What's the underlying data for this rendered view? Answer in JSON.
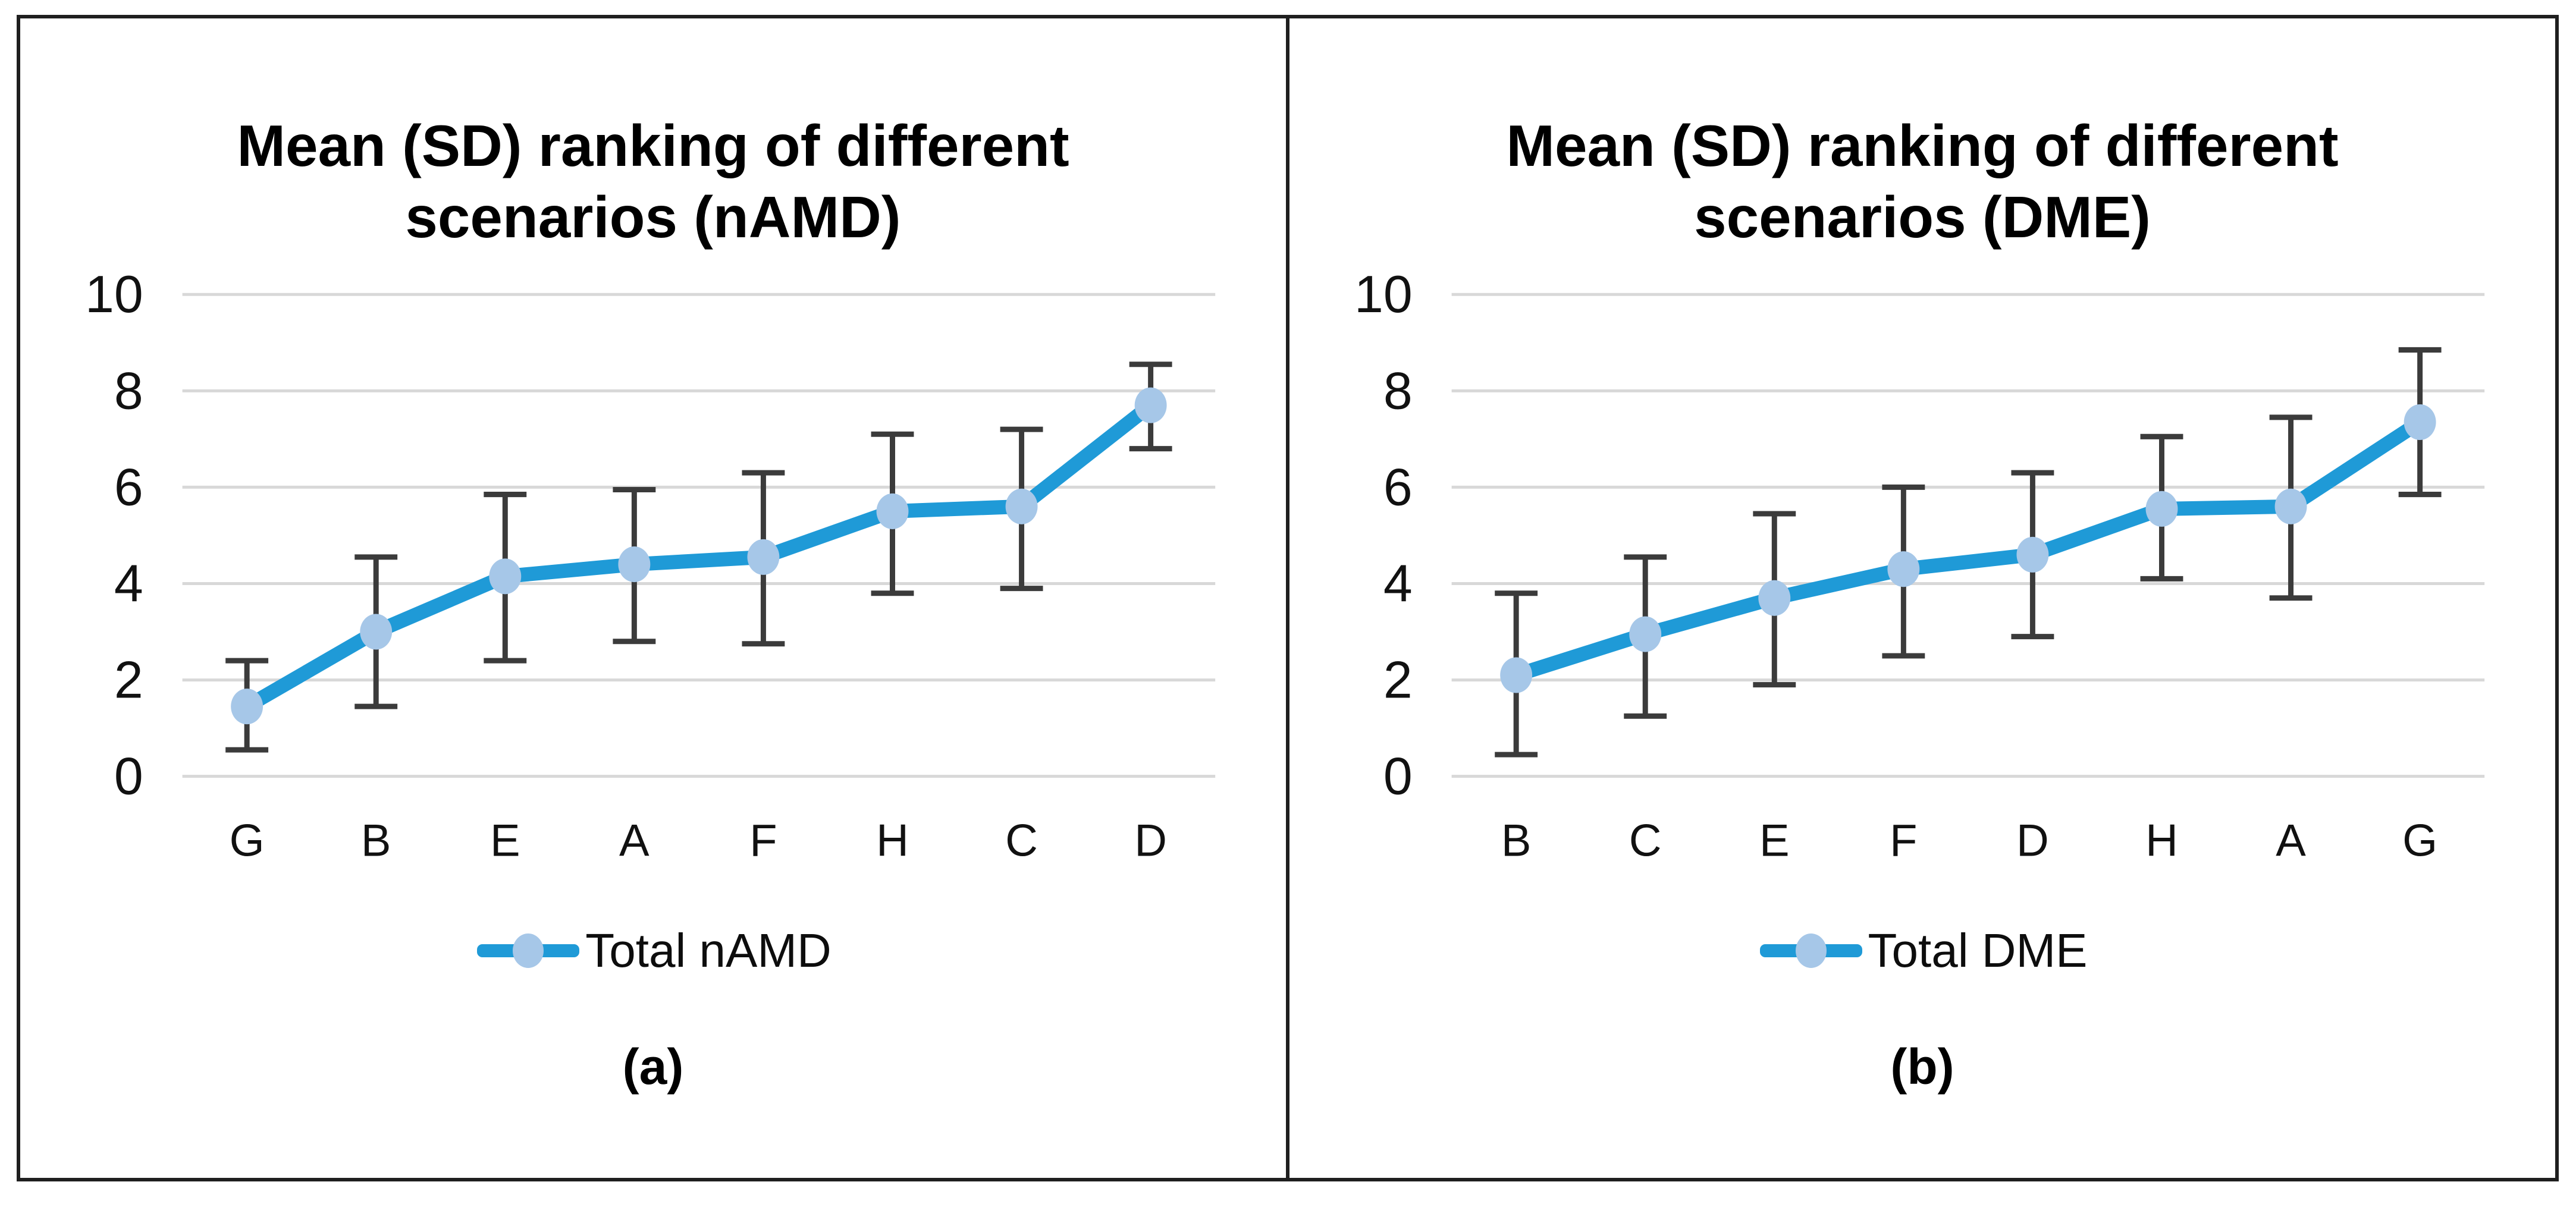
{
  "colors": {
    "line": "#1f9ad7",
    "marker": "#a6c7e8",
    "error_bar": "#3b3b3b",
    "gridline": "#d8d8d8",
    "frame": "#1f1f1f",
    "text": "#111111"
  },
  "axis": {
    "ymin": 0,
    "ymax": 10,
    "yticks": [
      10,
      8,
      6,
      4,
      2,
      0
    ]
  },
  "chart_data": [
    {
      "type": "line",
      "title_line1": "Mean (SD) ranking of different",
      "title_line2": "scenarios (nAMD)",
      "legend_label": "Total nAMD",
      "caption": "(a)",
      "xlabel": "",
      "ylabel": "",
      "ylim": [
        0,
        10
      ],
      "yticks": [
        10,
        8,
        6,
        4,
        2,
        0
      ],
      "grid": true,
      "legend_position": "bottom",
      "categories": [
        "G",
        "B",
        "E",
        "A",
        "F",
        "H",
        "C",
        "D"
      ],
      "series": [
        {
          "name": "Total nAMD",
          "values": [
            1.45,
            3.0,
            4.15,
            4.4,
            4.55,
            5.5,
            5.6,
            7.7
          ]
        }
      ],
      "error_upper": [
        2.4,
        4.55,
        5.85,
        5.95,
        6.3,
        7.1,
        7.2,
        8.55
      ],
      "error_lower": [
        0.55,
        1.45,
        2.4,
        2.8,
        2.75,
        3.8,
        3.9,
        6.8
      ]
    },
    {
      "type": "line",
      "title_line1": "Mean (SD) ranking of different",
      "title_line2": "scenarios (DME)",
      "legend_label": "Total DME",
      "caption": "(b)",
      "xlabel": "",
      "ylabel": "",
      "ylim": [
        0,
        10
      ],
      "yticks": [
        10,
        8,
        6,
        4,
        2,
        0
      ],
      "grid": true,
      "legend_position": "bottom",
      "categories": [
        "B",
        "C",
        "E",
        "F",
        "D",
        "H",
        "A",
        "G"
      ],
      "series": [
        {
          "name": "Total DME",
          "values": [
            2.1,
            2.95,
            3.7,
            4.3,
            4.6,
            5.55,
            5.6,
            7.35
          ]
        }
      ],
      "error_upper": [
        3.8,
        4.55,
        5.45,
        6.0,
        6.3,
        7.05,
        7.45,
        8.85
      ],
      "error_lower": [
        0.45,
        1.25,
        1.9,
        2.5,
        2.9,
        4.1,
        3.7,
        5.85
      ]
    }
  ]
}
